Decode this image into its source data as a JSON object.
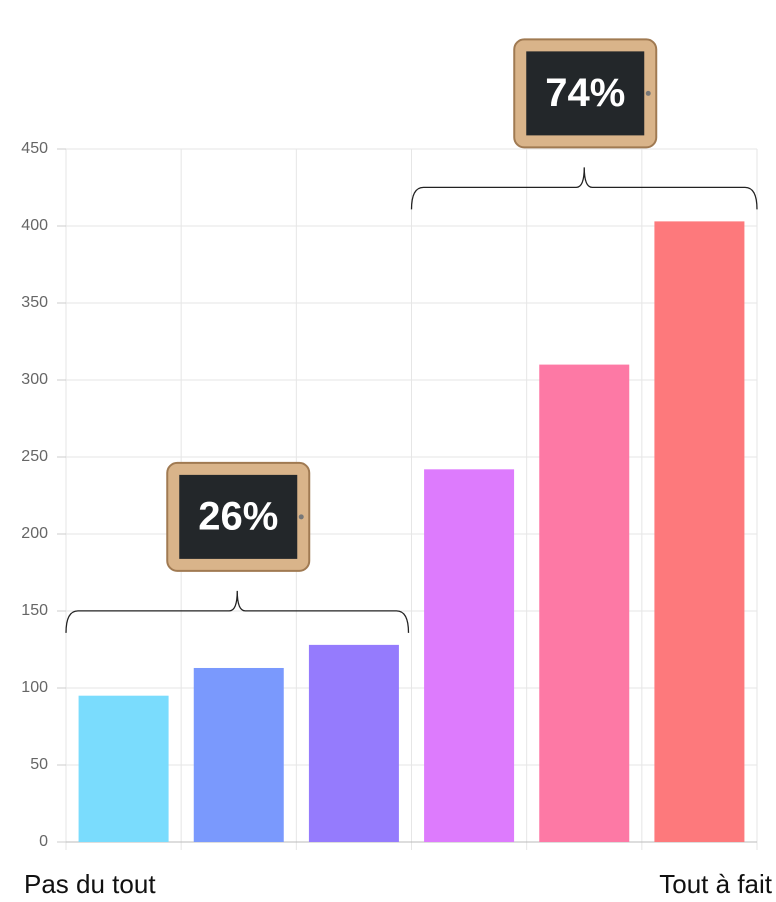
{
  "chart_data": {
    "type": "bar",
    "categories": [
      "Pas du tout",
      null,
      null,
      null,
      null,
      "Tout à fait"
    ],
    "values": [
      95,
      113,
      128,
      242,
      310,
      403
    ],
    "colors": [
      "#7adcfd",
      "#7a99fd",
      "#957bfd",
      "#dd7bfd",
      "#fd79a5",
      "#fd797c"
    ],
    "ylim": [
      0,
      450
    ],
    "yticks": [
      0,
      50,
      100,
      150,
      200,
      250,
      300,
      350,
      400,
      450
    ],
    "grid": true,
    "annotations": [
      "26%",
      "74%"
    ]
  }
}
